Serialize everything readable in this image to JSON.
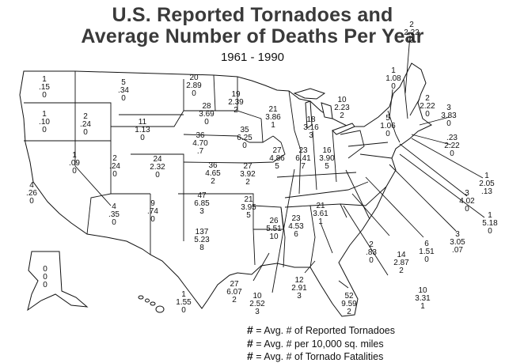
{
  "title_line1": "U.S. Reported Tornadoes and",
  "title_line2": "Average Number of Deaths Per Year",
  "subtitle": "1961 - 1990",
  "legend": [
    {
      "symbol": "#",
      "text": "= Avg. # of Reported Tornadoes"
    },
    {
      "symbol": "#",
      "text": "= Avg. # per 10,000 sq. miles"
    },
    {
      "symbol": "#",
      "text": "= Avg. # of Tornado Fatalities"
    }
  ],
  "states": [
    {
      "state": "Washington",
      "tornadoes": "1",
      "per_10k_sq_mi": ".15",
      "fatalities": "0"
    },
    {
      "state": "Oregon",
      "tornadoes": "1",
      "per_10k_sq_mi": ".10",
      "fatalities": "0"
    },
    {
      "state": "California",
      "tornadoes": "4",
      "per_10k_sq_mi": ".26",
      "fatalities": "0"
    },
    {
      "state": "Idaho",
      "tornadoes": "2",
      "per_10k_sq_mi": ".24",
      "fatalities": "0"
    },
    {
      "state": "Nevada",
      "tornadoes": "1",
      "per_10k_sq_mi": ".09",
      "fatalities": "0"
    },
    {
      "state": "Montana",
      "tornadoes": "5",
      "per_10k_sq_mi": ".34",
      "fatalities": "0"
    },
    {
      "state": "Wyoming",
      "tornadoes": "11",
      "per_10k_sq_mi": "1.13",
      "fatalities": "0"
    },
    {
      "state": "Utah",
      "tornadoes": "2",
      "per_10k_sq_mi": ".24",
      "fatalities": "0"
    },
    {
      "state": "Arizona",
      "tornadoes": "4",
      "per_10k_sq_mi": ".35",
      "fatalities": "0"
    },
    {
      "state": "Colorado",
      "tornadoes": "24",
      "per_10k_sq_mi": "2.32",
      "fatalities": "0"
    },
    {
      "state": "New Mexico",
      "tornadoes": "9",
      "per_10k_sq_mi": ".74",
      "fatalities": "0"
    },
    {
      "state": "North Dakota",
      "tornadoes": "20",
      "per_10k_sq_mi": "2.89",
      "fatalities": "0"
    },
    {
      "state": "South Dakota",
      "tornadoes": "28",
      "per_10k_sq_mi": "3.69",
      "fatalities": "0"
    },
    {
      "state": "Nebraska",
      "tornadoes": "36",
      "per_10k_sq_mi": "4.70",
      "fatalities": ".7"
    },
    {
      "state": "Kansas",
      "tornadoes": "36",
      "per_10k_sq_mi": "4.65",
      "fatalities": "2"
    },
    {
      "state": "Oklahoma",
      "tornadoes": "47",
      "per_10k_sq_mi": "6.85",
      "fatalities": "3"
    },
    {
      "state": "Texas",
      "tornadoes": "137",
      "per_10k_sq_mi": "5.23",
      "fatalities": "8"
    },
    {
      "state": "Minnesota",
      "tornadoes": "19",
      "per_10k_sq_mi": "2.39",
      "fatalities": "2"
    },
    {
      "state": "Iowa",
      "tornadoes": "35",
      "per_10k_sq_mi": "6.25",
      "fatalities": "0"
    },
    {
      "state": "Missouri",
      "tornadoes": "27",
      "per_10k_sq_mi": "3.92",
      "fatalities": "2"
    },
    {
      "state": "Arkansas",
      "tornadoes": "21",
      "per_10k_sq_mi": "3.95",
      "fatalities": "5"
    },
    {
      "state": "Louisiana",
      "tornadoes": "27",
      "per_10k_sq_mi": "6.07",
      "fatalities": "2"
    },
    {
      "state": "Wisconsin",
      "tornadoes": "21",
      "per_10k_sq_mi": "3.86",
      "fatalities": "1"
    },
    {
      "state": "Illinois",
      "tornadoes": "27",
      "per_10k_sq_mi": "4.86",
      "fatalities": "5"
    },
    {
      "state": "Michigan",
      "tornadoes": "18",
      "per_10k_sq_mi": "3.16",
      "fatalities": "3"
    },
    {
      "state": "Indiana",
      "tornadoes": "23",
      "per_10k_sq_mi": "6.41",
      "fatalities": "7"
    },
    {
      "state": "Ohio",
      "tornadoes": "16",
      "per_10k_sq_mi": "3.90",
      "fatalities": "5"
    },
    {
      "state": "Mississippi",
      "tornadoes": "26",
      "per_10k_sq_mi": "5.51",
      "fatalities": "10"
    },
    {
      "state": "Alabama",
      "tornadoes": "23",
      "per_10k_sq_mi": "4.53",
      "fatalities": "6"
    },
    {
      "state": "Georgia",
      "tornadoes": "21",
      "per_10k_sq_mi": "3.61",
      "fatalities": "1"
    },
    {
      "state": "Mississippi Coast",
      "tornadoes": "10",
      "per_10k_sq_mi": "2.52",
      "fatalities": "3"
    },
    {
      "state": "Alabama South",
      "tornadoes": "12",
      "per_10k_sq_mi": "2.91",
      "fatalities": "3"
    },
    {
      "state": "Florida",
      "tornadoes": "52",
      "per_10k_sq_mi": "9.59",
      "fatalities": "2"
    },
    {
      "state": "Pennsylvania",
      "tornadoes": "10",
      "per_10k_sq_mi": "2.23",
      "fatalities": "2"
    },
    {
      "state": "New York",
      "tornadoes": "5",
      "per_10k_sq_mi": "1.06",
      "fatalities": "0"
    },
    {
      "state": "Vermont",
      "tornadoes": "1",
      "per_10k_sq_mi": "1.08",
      "fatalities": "0"
    },
    {
      "state": "New Hampshire",
      "tornadoes": "2",
      "per_10k_sq_mi": "2.22",
      "fatalities": "0"
    },
    {
      "state": "Maine",
      "tornadoes": "2",
      "per_10k_sq_mi": "2.22",
      "fatalities": "0"
    },
    {
      "state": "Massachusetts",
      "tornadoes": "3",
      "per_10k_sq_mi": "3.83",
      "fatalities": "0"
    },
    {
      "state": "Rhode Island",
      "tornadoes": ".23",
      "per_10k_sq_mi": "2.22",
      "fatalities": "0"
    },
    {
      "state": "Connecticut",
      "tornadoes": "1",
      "per_10k_sq_mi": "2.05",
      "fatalities": ".13"
    },
    {
      "state": "New Jersey",
      "tornadoes": "3",
      "per_10k_sq_mi": "4.02",
      "fatalities": "0"
    },
    {
      "state": "Delaware",
      "tornadoes": "1",
      "per_10k_sq_mi": "5.18",
      "fatalities": "0"
    },
    {
      "state": "Maryland",
      "tornadoes": "3",
      "per_10k_sq_mi": "3.05",
      "fatalities": ".07"
    },
    {
      "state": "Virginia",
      "tornadoes": "6",
      "per_10k_sq_mi": "1.51",
      "fatalities": "0"
    },
    {
      "state": "North Carolina",
      "tornadoes": "14",
      "per_10k_sq_mi": "2.87",
      "fatalities": "2"
    },
    {
      "state": "West Virginia",
      "tornadoes": "2",
      "per_10k_sq_mi": ".83",
      "fatalities": "0"
    },
    {
      "state": "South Carolina",
      "tornadoes": "10",
      "per_10k_sq_mi": "3.31",
      "fatalities": "1"
    },
    {
      "state": "Alaska",
      "tornadoes": "0",
      "per_10k_sq_mi": "0",
      "fatalities": "0"
    },
    {
      "state": "Hawaii",
      "tornadoes": "1",
      "per_10k_sq_mi": "1.55",
      "fatalities": "0"
    }
  ]
}
